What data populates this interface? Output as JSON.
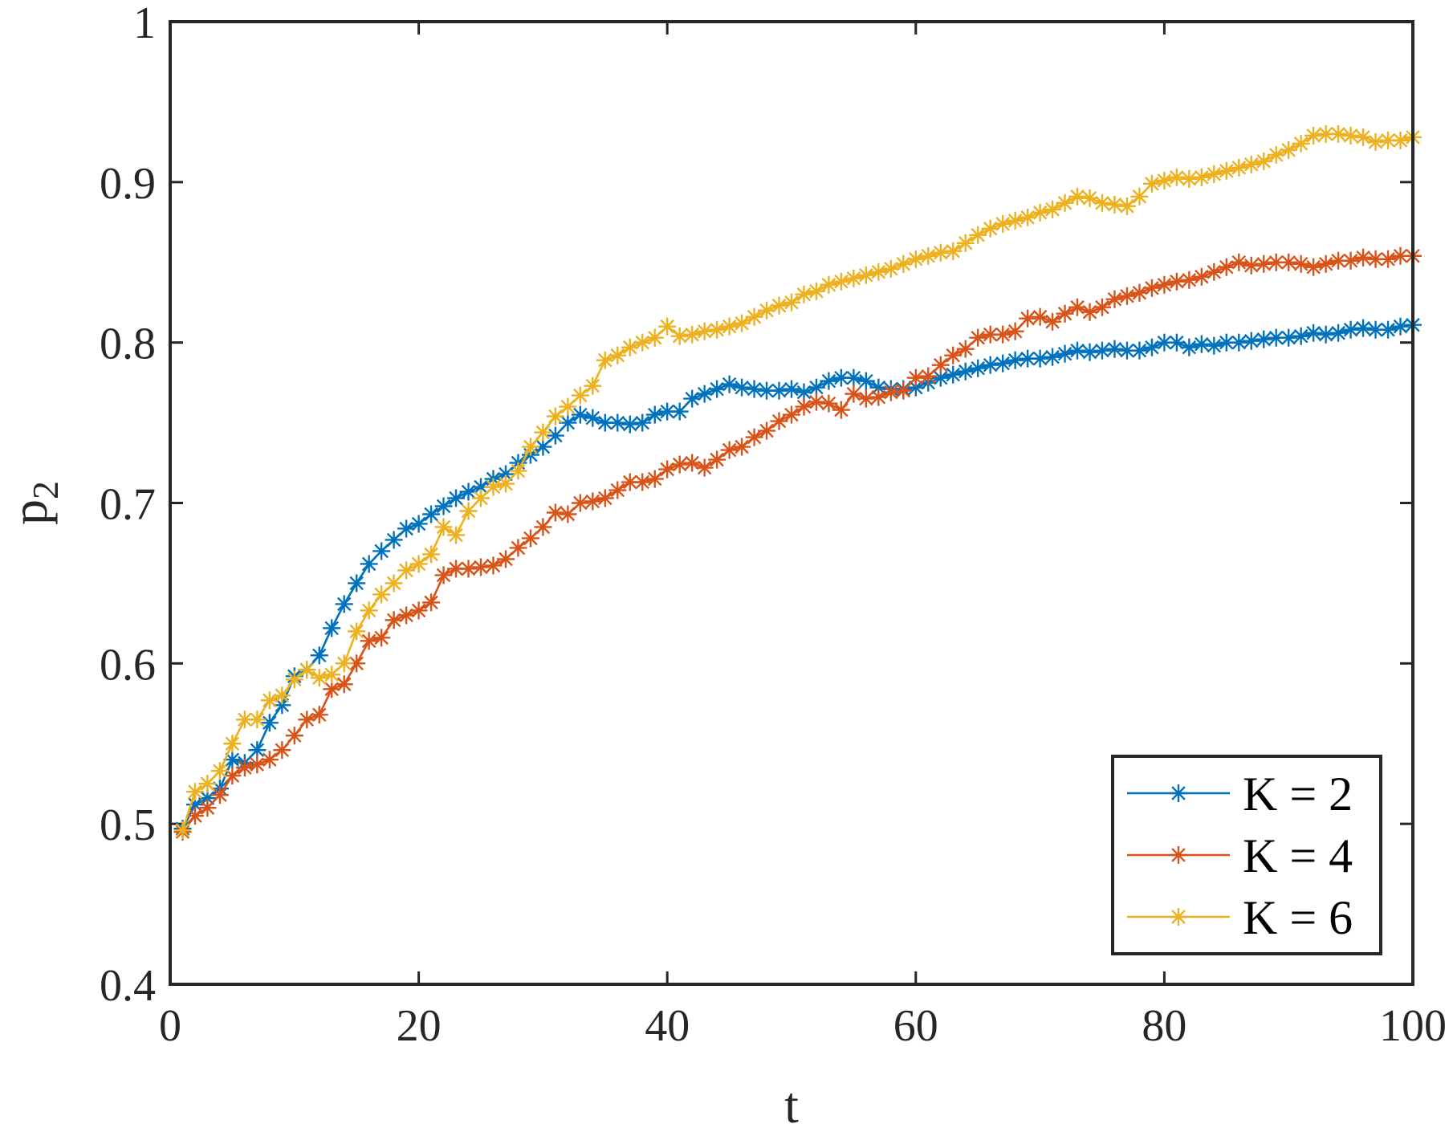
{
  "chart_data": {
    "type": "line",
    "xlabel": "t",
    "ylabel": "p",
    "ylabel_subscript": "2",
    "xlim": [
      0,
      100
    ],
    "ylim": [
      0.4,
      1
    ],
    "xticks": [
      0,
      20,
      40,
      60,
      80,
      100
    ],
    "xtick_labels": [
      "0",
      "20",
      "40",
      "60",
      "80",
      "100"
    ],
    "yticks": [
      0.4,
      0.5,
      0.6,
      0.7,
      0.8,
      0.9,
      1
    ],
    "ytick_labels": [
      "0.4",
      "0.5",
      "0.6",
      "0.7",
      "0.8",
      "0.9",
      "1"
    ],
    "grid": false,
    "legend_position": "bottom-right",
    "marker": "asterisk",
    "x": [
      1,
      2,
      3,
      4,
      5,
      6,
      7,
      8,
      9,
      10,
      11,
      12,
      13,
      14,
      15,
      16,
      17,
      18,
      19,
      20,
      21,
      22,
      23,
      24,
      25,
      26,
      27,
      28,
      29,
      30,
      31,
      32,
      33,
      34,
      35,
      36,
      37,
      38,
      39,
      40,
      41,
      42,
      43,
      44,
      45,
      46,
      47,
      48,
      49,
      50,
      51,
      52,
      53,
      54,
      55,
      56,
      57,
      58,
      59,
      60,
      61,
      62,
      63,
      64,
      65,
      66,
      67,
      68,
      69,
      70,
      71,
      72,
      73,
      74,
      75,
      76,
      77,
      78,
      79,
      80,
      81,
      82,
      83,
      84,
      85,
      86,
      87,
      88,
      89,
      90,
      91,
      92,
      93,
      94,
      95,
      96,
      97,
      98,
      99,
      100
    ],
    "series": [
      {
        "name": "K = 2",
        "color": "#0072BD",
        "values": [
          0.497,
          0.512,
          0.516,
          0.522,
          0.54,
          0.538,
          0.546,
          0.563,
          0.574,
          0.592,
          0.596,
          0.605,
          0.622,
          0.637,
          0.65,
          0.662,
          0.67,
          0.677,
          0.684,
          0.687,
          0.693,
          0.698,
          0.703,
          0.707,
          0.71,
          0.715,
          0.718,
          0.725,
          0.73,
          0.735,
          0.742,
          0.75,
          0.755,
          0.753,
          0.75,
          0.75,
          0.749,
          0.75,
          0.755,
          0.757,
          0.757,
          0.765,
          0.768,
          0.771,
          0.774,
          0.772,
          0.771,
          0.77,
          0.77,
          0.771,
          0.769,
          0.772,
          0.776,
          0.778,
          0.778,
          0.776,
          0.772,
          0.771,
          0.771,
          0.772,
          0.775,
          0.778,
          0.78,
          0.782,
          0.784,
          0.786,
          0.787,
          0.789,
          0.79,
          0.79,
          0.791,
          0.793,
          0.795,
          0.794,
          0.795,
          0.796,
          0.795,
          0.795,
          0.797,
          0.8,
          0.8,
          0.797,
          0.799,
          0.798,
          0.8,
          0.8,
          0.801,
          0.802,
          0.803,
          0.803,
          0.804,
          0.806,
          0.805,
          0.806,
          0.808,
          0.809,
          0.808,
          0.808,
          0.81,
          0.811
        ]
      },
      {
        "name": "K = 4",
        "color": "#D95319",
        "values": [
          0.495,
          0.505,
          0.51,
          0.518,
          0.53,
          0.535,
          0.537,
          0.54,
          0.546,
          0.555,
          0.565,
          0.568,
          0.584,
          0.587,
          0.6,
          0.614,
          0.616,
          0.627,
          0.63,
          0.633,
          0.638,
          0.655,
          0.659,
          0.659,
          0.66,
          0.661,
          0.665,
          0.672,
          0.678,
          0.685,
          0.694,
          0.693,
          0.7,
          0.701,
          0.703,
          0.708,
          0.713,
          0.713,
          0.715,
          0.721,
          0.724,
          0.725,
          0.722,
          0.727,
          0.733,
          0.735,
          0.741,
          0.745,
          0.751,
          0.755,
          0.76,
          0.763,
          0.762,
          0.758,
          0.768,
          0.765,
          0.766,
          0.769,
          0.77,
          0.778,
          0.779,
          0.786,
          0.792,
          0.796,
          0.803,
          0.805,
          0.805,
          0.807,
          0.815,
          0.816,
          0.813,
          0.818,
          0.822,
          0.819,
          0.822,
          0.827,
          0.829,
          0.831,
          0.834,
          0.836,
          0.838,
          0.839,
          0.841,
          0.844,
          0.847,
          0.85,
          0.848,
          0.849,
          0.85,
          0.85,
          0.849,
          0.847,
          0.849,
          0.851,
          0.851,
          0.853,
          0.852,
          0.852,
          0.854,
          0.854
        ]
      },
      {
        "name": "K = 6",
        "color": "#EDB120",
        "values": [
          0.496,
          0.52,
          0.525,
          0.533,
          0.55,
          0.565,
          0.565,
          0.577,
          0.58,
          0.59,
          0.596,
          0.591,
          0.593,
          0.6,
          0.62,
          0.633,
          0.643,
          0.65,
          0.658,
          0.662,
          0.668,
          0.685,
          0.68,
          0.695,
          0.703,
          0.71,
          0.712,
          0.72,
          0.735,
          0.744,
          0.754,
          0.76,
          0.767,
          0.773,
          0.789,
          0.792,
          0.797,
          0.8,
          0.803,
          0.81,
          0.804,
          0.805,
          0.807,
          0.808,
          0.81,
          0.812,
          0.816,
          0.82,
          0.823,
          0.825,
          0.83,
          0.832,
          0.836,
          0.838,
          0.84,
          0.842,
          0.844,
          0.846,
          0.849,
          0.852,
          0.854,
          0.856,
          0.857,
          0.862,
          0.867,
          0.871,
          0.874,
          0.876,
          0.878,
          0.881,
          0.883,
          0.887,
          0.891,
          0.89,
          0.887,
          0.886,
          0.885,
          0.891,
          0.899,
          0.901,
          0.903,
          0.902,
          0.903,
          0.905,
          0.907,
          0.909,
          0.911,
          0.913,
          0.917,
          0.92,
          0.924,
          0.929,
          0.93,
          0.93,
          0.929,
          0.928,
          0.925,
          0.926,
          0.926,
          0.928
        ]
      }
    ]
  }
}
